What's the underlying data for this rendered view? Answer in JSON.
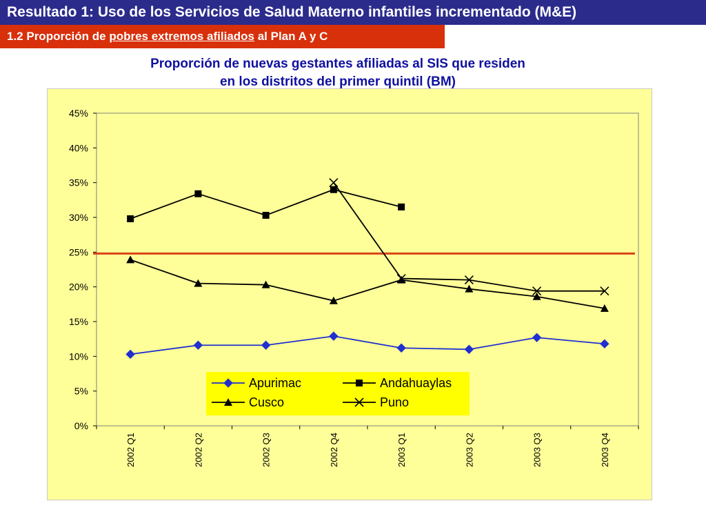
{
  "header": {
    "title": "Resultado 1: Uso de los Servicios de Salud Materno infantiles incrementado (M&E)",
    "subtitle_prefix": "1.2 Proporción de ",
    "subtitle_underlined": "pobres extremos afiliados",
    "subtitle_suffix": " al Plan A y C"
  },
  "chart_heading": {
    "line1": "Proporción de nuevas gestantes afiliadas al SIS que residen",
    "line2": "en los distritos del primer quintil (BM)"
  },
  "colors": {
    "title_bg": "#2b2b8c",
    "subtitle_bg": "#d8300b",
    "heading_text": "#1010a0",
    "chart_bg": "#ffff99",
    "legend_bg": "#ffff00",
    "threshold_line": "#d84315",
    "apurimac": "#1f2fd0",
    "black_series": "#000000"
  },
  "chart_data": {
    "type": "line",
    "categories": [
      "2002 Q1",
      "2002 Q2",
      "2002 Q3",
      "2002 Q4",
      "2003 Q1",
      "2003 Q2",
      "2003 Q3",
      "2003 Q4"
    ],
    "y_tick_labels": [
      "0%",
      "5%",
      "10%",
      "15%",
      "20%",
      "25%",
      "30%",
      "35%",
      "40%",
      "45%"
    ],
    "ylim": [
      0,
      45
    ],
    "y_unit": "%",
    "grid": false,
    "legend_position": "bottom-center",
    "threshold": 24.8,
    "series": [
      {
        "name": "Apurimac",
        "marker": "diamond",
        "color": "#1f2fd0",
        "values": [
          10.3,
          11.6,
          11.6,
          12.9,
          11.2,
          11.0,
          12.7,
          11.8
        ]
      },
      {
        "name": "Andahuaylas",
        "marker": "square",
        "color": "#000000",
        "values": [
          29.8,
          33.4,
          30.3,
          34.0,
          31.5,
          null,
          null,
          null
        ]
      },
      {
        "name": "Cusco",
        "marker": "triangle",
        "color": "#000000",
        "values": [
          23.9,
          20.5,
          20.3,
          18.0,
          21.0,
          19.7,
          18.6,
          16.9
        ]
      },
      {
        "name": "Puno",
        "marker": "x",
        "color": "#000000",
        "values": [
          null,
          null,
          null,
          35.0,
          21.2,
          21.0,
          19.4,
          19.4
        ]
      }
    ]
  }
}
